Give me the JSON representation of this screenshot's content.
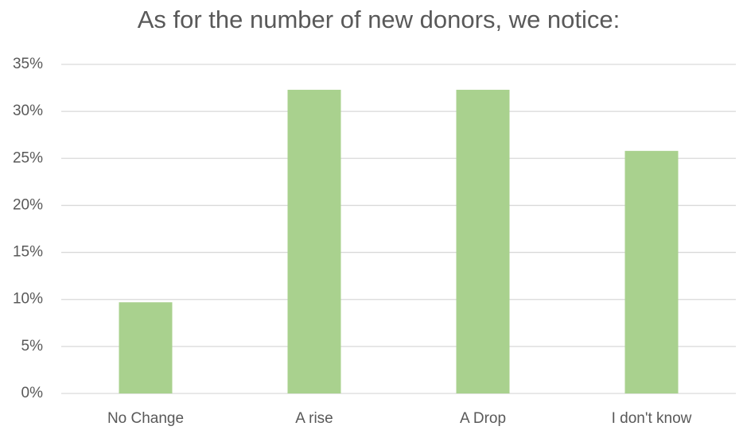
{
  "chart_data": {
    "type": "bar",
    "title": "As for the number of new donors, we notice:",
    "categories": [
      "No Change",
      "A rise",
      "A Drop",
      "I don't know"
    ],
    "values": [
      9.7,
      32.3,
      32.3,
      25.8
    ],
    "color": "#a9d18e",
    "ylim": [
      0,
      35
    ],
    "yticks": [
      {
        "value": 0,
        "label": "0%"
      },
      {
        "value": 5,
        "label": "5%"
      },
      {
        "value": 10,
        "label": "10%"
      },
      {
        "value": 15,
        "label": "15%"
      },
      {
        "value": 20,
        "label": "20%"
      },
      {
        "value": 25,
        "label": "25%"
      },
      {
        "value": 30,
        "label": "30%"
      },
      {
        "value": 35,
        "label": "35%"
      }
    ],
    "grid": true
  }
}
